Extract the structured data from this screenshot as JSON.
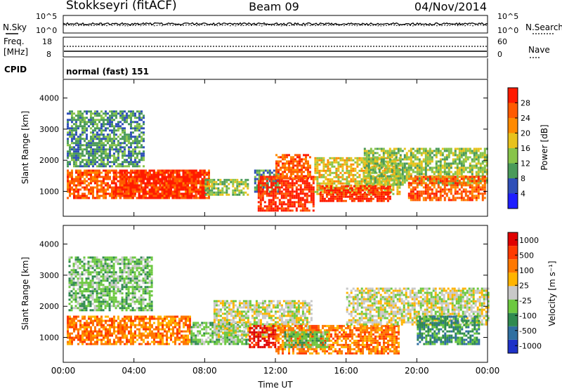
{
  "header": {
    "station": "Stokkseyri (fitACF)",
    "beam": "Beam 09",
    "date": "04/Nov/2014"
  },
  "noise_panel": {
    "left_label": "N.Sky",
    "left_ticks": [
      "10^5",
      "10^0"
    ],
    "right_ticks": [
      "10^5",
      "10^0"
    ],
    "right_label": "N.Search"
  },
  "freq_panel": {
    "label_line1": "Freq.",
    "label_line2": "[MHz]",
    "left_ticks": [
      "18",
      "8"
    ],
    "right_ticks": [
      "60",
      "0"
    ],
    "right_label": "Nave"
  },
  "cpid_panel": {
    "label": "CPID",
    "mode": "normal (fast) 151"
  },
  "chart_data": [
    {
      "type": "heatmap",
      "quantity": "Power",
      "ylabel": "Slant Range [km]",
      "yticks": [
        "1000",
        "2000",
        "3000",
        "4000"
      ],
      "ylim": [
        200,
        4600
      ],
      "colorbar_label": "Power [dB]",
      "colorbar_ticks": [
        "4",
        "8",
        "12",
        "16",
        "20",
        "24",
        "28"
      ],
      "colors": [
        "#1e1eff",
        "#2f4fb8",
        "#4a9a5a",
        "#88c44a",
        "#e8c21c",
        "#ff8a00",
        "#ff5a00",
        "#ff1a00"
      ],
      "regions": [
        {
          "t": [
            0.2,
            8.2
          ],
          "r": [
            800,
            1700
          ],
          "level": 6
        },
        {
          "t": [
            2.8,
            8.0
          ],
          "r": [
            800,
            1700
          ],
          "level": 7
        },
        {
          "t": [
            8.0,
            10.5
          ],
          "r": [
            900,
            1400
          ],
          "level": 3
        },
        {
          "t": [
            10.8,
            12.2
          ],
          "r": [
            1000,
            1700
          ],
          "level": 2
        },
        {
          "t": [
            11.0,
            14.2
          ],
          "r": [
            400,
            1500
          ],
          "level": 7
        },
        {
          "t": [
            12.0,
            14.0
          ],
          "r": [
            1400,
            2200
          ],
          "level": 6
        },
        {
          "t": [
            14.2,
            19.0
          ],
          "r": [
            900,
            2100
          ],
          "level": 4
        },
        {
          "t": [
            14.5,
            18.5
          ],
          "r": [
            700,
            1200
          ],
          "level": 7
        },
        {
          "t": [
            17.0,
            24.0
          ],
          "r": [
            1200,
            2400
          ],
          "level": 3
        },
        {
          "t": [
            19.5,
            23.8
          ],
          "r": [
            700,
            1500
          ],
          "level": 6
        },
        {
          "t": [
            0.2,
            4.5
          ],
          "r": [
            1800,
            3600
          ],
          "level": 2
        }
      ]
    },
    {
      "type": "heatmap",
      "quantity": "Velocity",
      "ylabel": "Slant Range [km]",
      "yticks": [
        "1000",
        "2000",
        "3000",
        "4000"
      ],
      "ylim": [
        200,
        4600
      ],
      "xlabel": "Time UT",
      "xticks": [
        "00:00",
        "04:00",
        "08:00",
        "12:00",
        "16:00",
        "20:00",
        "00:00"
      ],
      "xlim": [
        0,
        24
      ],
      "colorbar_label": "Velocity [m s⁻¹]",
      "colorbar_ticks": [
        "1000",
        "500",
        "100",
        "25",
        "-25",
        "-100",
        "-500",
        "-1000"
      ],
      "colors": [
        "#1e32c8",
        "#2f6fa0",
        "#2f8a50",
        "#6cc840",
        "#c8c8c8",
        "#ffb400",
        "#ff7800",
        "#ff3a00",
        "#e00000"
      ],
      "regions": [
        {
          "t": [
            0.2,
            7.2
          ],
          "r": [
            800,
            1700
          ],
          "level": 6
        },
        {
          "t": [
            7.2,
            10.5
          ],
          "r": [
            800,
            1500
          ],
          "level": 3
        },
        {
          "t": [
            8.5,
            14.0
          ],
          "r": [
            1000,
            2200
          ],
          "level": 4
        },
        {
          "t": [
            10.5,
            12.0
          ],
          "r": [
            700,
            1400
          ],
          "level": 8
        },
        {
          "t": [
            12.0,
            19.0
          ],
          "r": [
            500,
            1400
          ],
          "level": 6
        },
        {
          "t": [
            12.5,
            15.0
          ],
          "r": [
            700,
            1200
          ],
          "level": 3
        },
        {
          "t": [
            16.0,
            24.0
          ],
          "r": [
            1400,
            2600
          ],
          "level": 4
        },
        {
          "t": [
            20.0,
            23.5
          ],
          "r": [
            800,
            1700
          ],
          "level": 2
        },
        {
          "t": [
            0.3,
            5.0
          ],
          "r": [
            1900,
            3600
          ],
          "level": 3
        }
      ]
    }
  ]
}
